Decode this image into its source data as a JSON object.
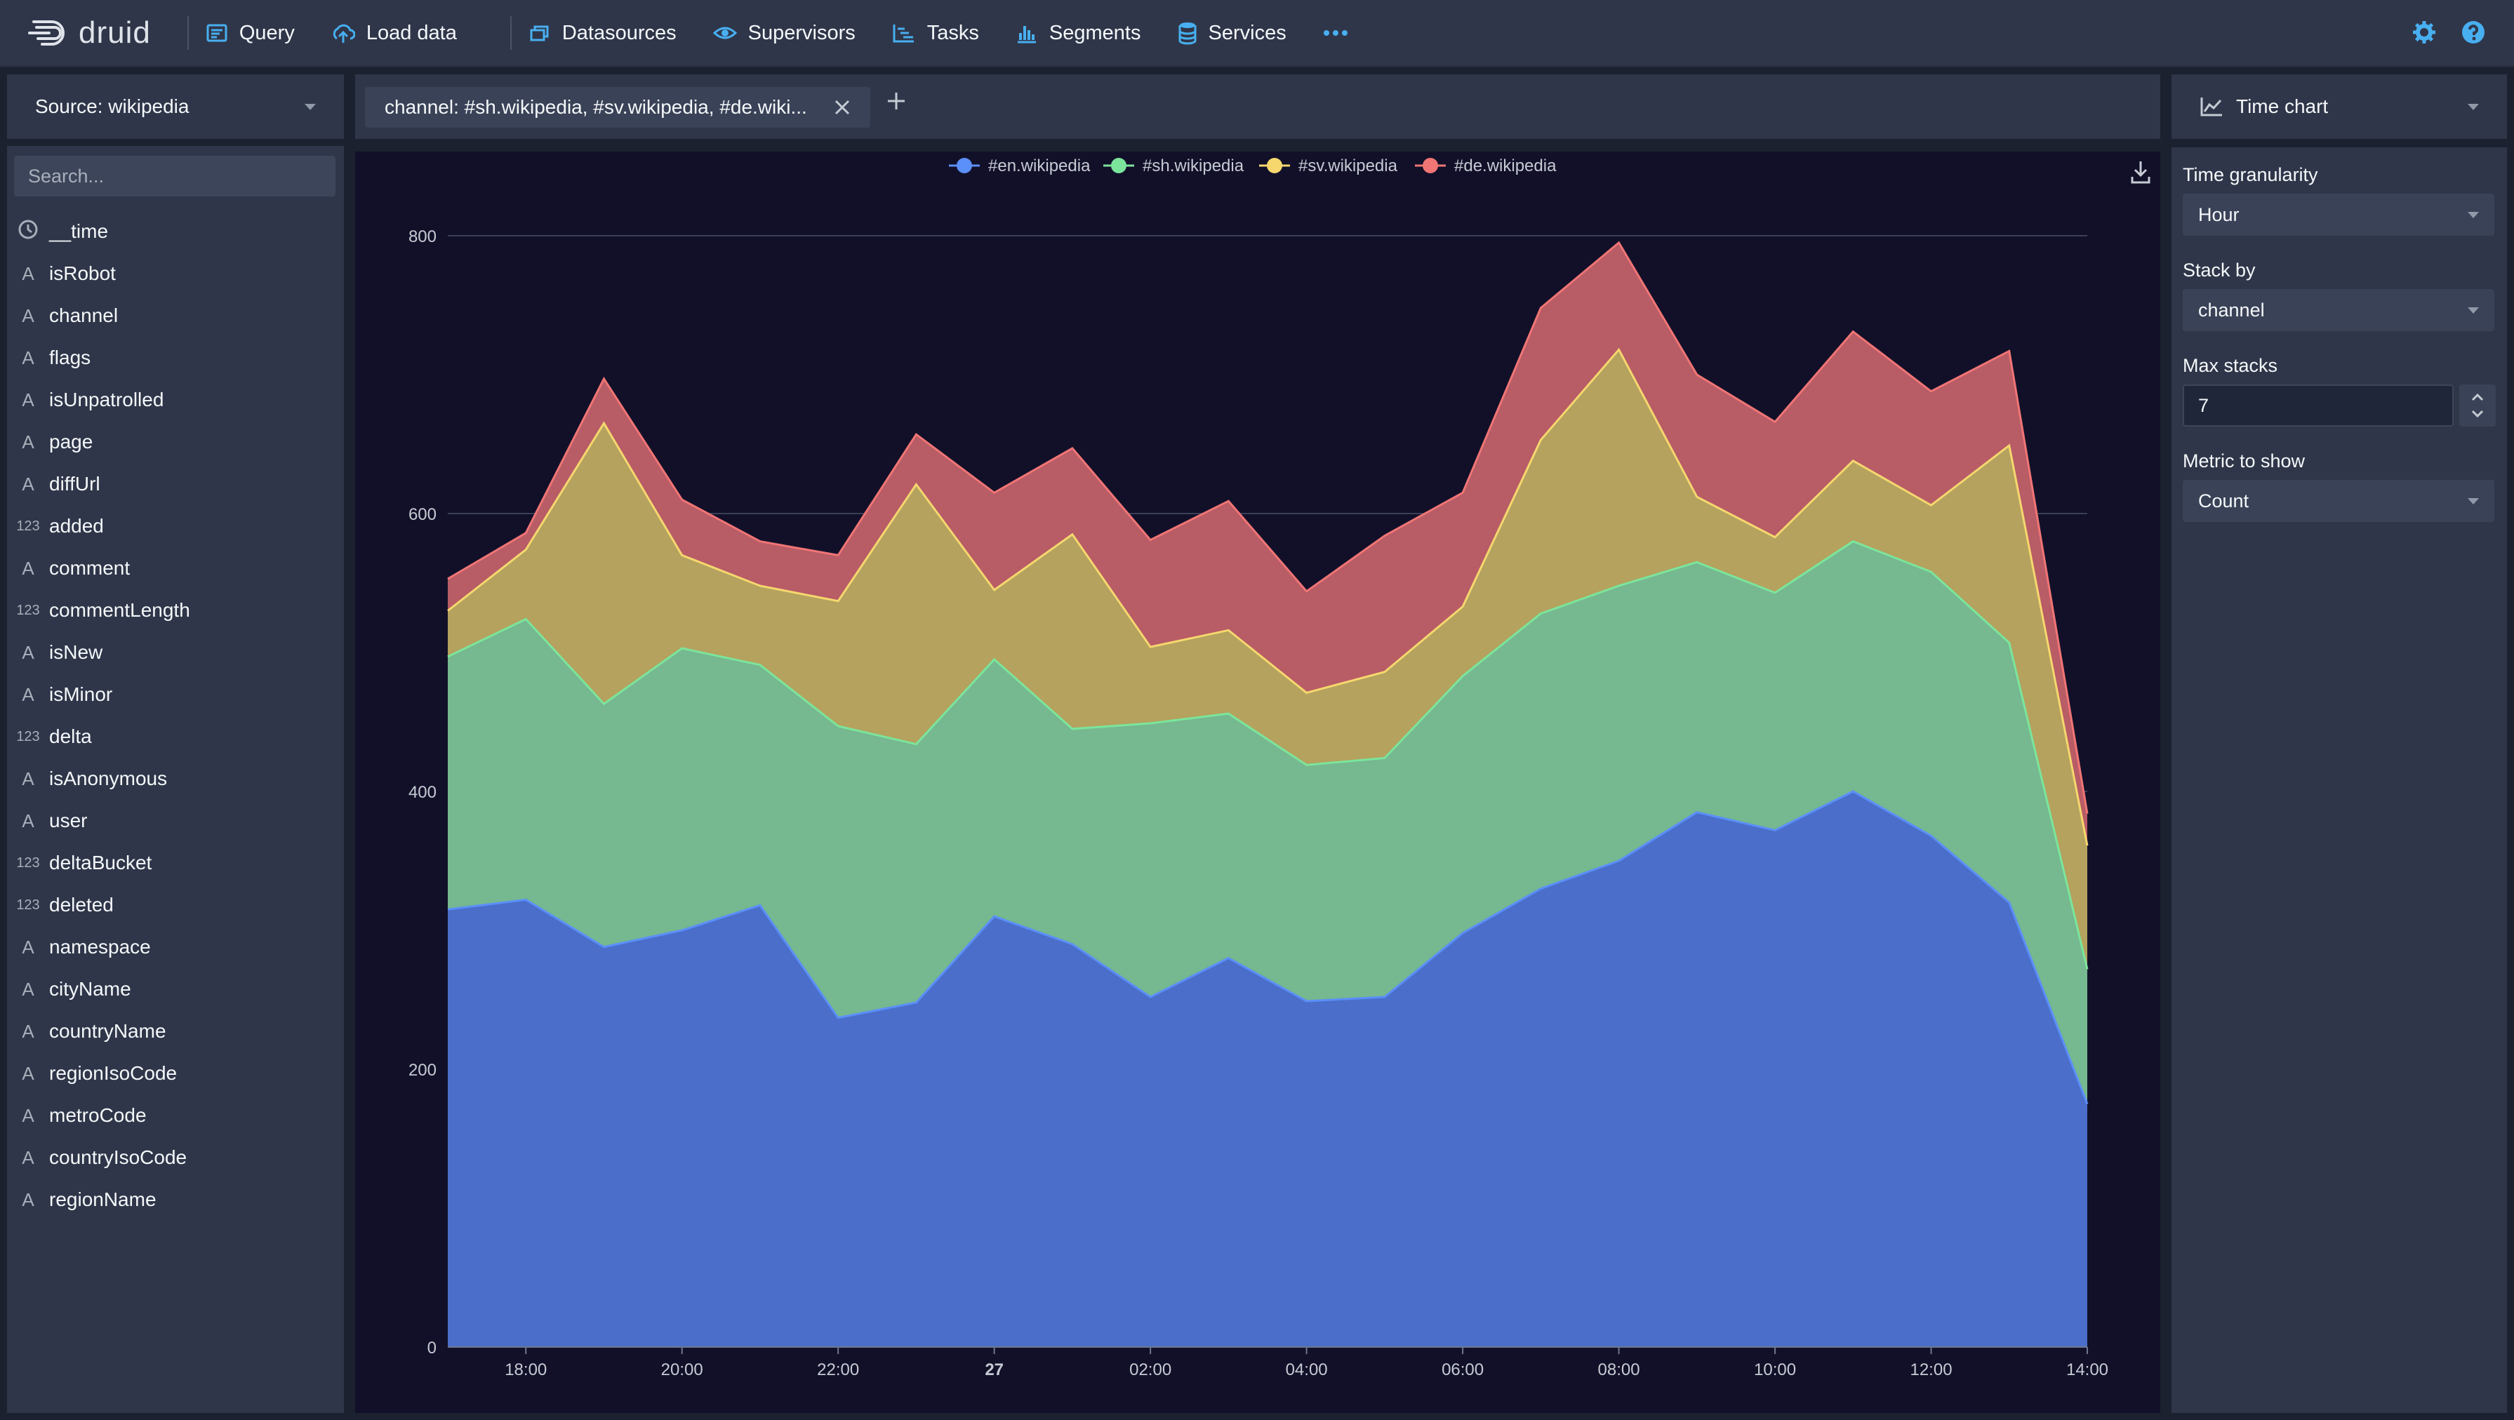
{
  "app": {
    "logo_text": "druid"
  },
  "nav": [
    {
      "label": "Query",
      "icon": "query-icon"
    },
    {
      "label": "Load data",
      "icon": "upload-icon"
    },
    {
      "label": "Datasources",
      "icon": "datasources-icon"
    },
    {
      "label": "Supervisors",
      "icon": "eye-icon"
    },
    {
      "label": "Tasks",
      "icon": "tasks-icon"
    },
    {
      "label": "Segments",
      "icon": "segments-icon"
    },
    {
      "label": "Services",
      "icon": "database-icon"
    }
  ],
  "source": {
    "label": "Source: wikipedia"
  },
  "filter": {
    "text": "channel: #sh.wikipedia, #sv.wikipedia, #de.wiki..."
  },
  "search": {
    "placeholder": "Search..."
  },
  "columns": [
    {
      "name": "__time",
      "type": "time"
    },
    {
      "name": "isRobot",
      "type": "string"
    },
    {
      "name": "channel",
      "type": "string"
    },
    {
      "name": "flags",
      "type": "string"
    },
    {
      "name": "isUnpatrolled",
      "type": "string"
    },
    {
      "name": "page",
      "type": "string"
    },
    {
      "name": "diffUrl",
      "type": "string"
    },
    {
      "name": "added",
      "type": "number"
    },
    {
      "name": "comment",
      "type": "string"
    },
    {
      "name": "commentLength",
      "type": "number"
    },
    {
      "name": "isNew",
      "type": "string"
    },
    {
      "name": "isMinor",
      "type": "string"
    },
    {
      "name": "delta",
      "type": "number"
    },
    {
      "name": "isAnonymous",
      "type": "string"
    },
    {
      "name": "user",
      "type": "string"
    },
    {
      "name": "deltaBucket",
      "type": "number"
    },
    {
      "name": "deleted",
      "type": "number"
    },
    {
      "name": "namespace",
      "type": "string"
    },
    {
      "name": "cityName",
      "type": "string"
    },
    {
      "name": "countryName",
      "type": "string"
    },
    {
      "name": "regionIsoCode",
      "type": "string"
    },
    {
      "name": "metroCode",
      "type": "string"
    },
    {
      "name": "countryIsoCode",
      "type": "string"
    },
    {
      "name": "regionName",
      "type": "string"
    }
  ],
  "viz": {
    "label": "Time chart"
  },
  "controls": {
    "time_granularity_label": "Time granularity",
    "time_granularity": "Hour",
    "stack_by_label": "Stack by",
    "stack_by": "channel",
    "max_stacks_label": "Max stacks",
    "max_stacks": "7",
    "metric_label": "Metric to show",
    "metric": "Count"
  },
  "chart_data": {
    "type": "area",
    "stacked": true,
    "x": [
      "17:00",
      "18:00",
      "19:00",
      "20:00",
      "21:00",
      "22:00",
      "23:00",
      "27",
      "01:00",
      "02:00",
      "03:00",
      "04:00",
      "05:00",
      "06:00",
      "07:00",
      "08:00",
      "09:00",
      "10:00",
      "11:00",
      "12:00",
      "13:00",
      "14:00"
    ],
    "xticks": [
      "18:00",
      "20:00",
      "22:00",
      "27",
      "02:00",
      "04:00",
      "06:00",
      "08:00",
      "10:00",
      "12:00",
      "14:00"
    ],
    "yticks": [
      0,
      200,
      400,
      600,
      800
    ],
    "ylim": [
      0,
      800
    ],
    "grid": true,
    "legend_position": "top-center",
    "series": [
      {
        "name": "#en.wikipedia",
        "color": "#5b8ff9",
        "fill": "#4a6ec9",
        "values": [
          315,
          322,
          288,
          300,
          318,
          237,
          248,
          310,
          290,
          252,
          280,
          249,
          252,
          298,
          330,
          350,
          385,
          372,
          400,
          368,
          320,
          175
        ]
      },
      {
        "name": "#sh.wikipedia",
        "color": "#7be59c",
        "fill": "#76b88f",
        "values": [
          182,
          202,
          175,
          203,
          173,
          210,
          186,
          185,
          155,
          197,
          176,
          170,
          172,
          185,
          198,
          198,
          180,
          171,
          180,
          190,
          187,
          97
        ]
      },
      {
        "name": "#sv.wikipedia",
        "color": "#f5d76e",
        "fill": "#b4a25e",
        "values": [
          33,
          50,
          202,
          67,
          57,
          90,
          187,
          50,
          140,
          55,
          60,
          52,
          62,
          50,
          125,
          170,
          47,
          40,
          58,
          48,
          142,
          89
        ]
      },
      {
        "name": "#de.wikipedia",
        "color": "#f07575",
        "fill": "#b85c66",
        "values": [
          23,
          12,
          32,
          40,
          32,
          33,
          36,
          70,
          62,
          77,
          93,
          73,
          98,
          82,
          95,
          77,
          88,
          83,
          93,
          82,
          68,
          23
        ]
      }
    ]
  }
}
